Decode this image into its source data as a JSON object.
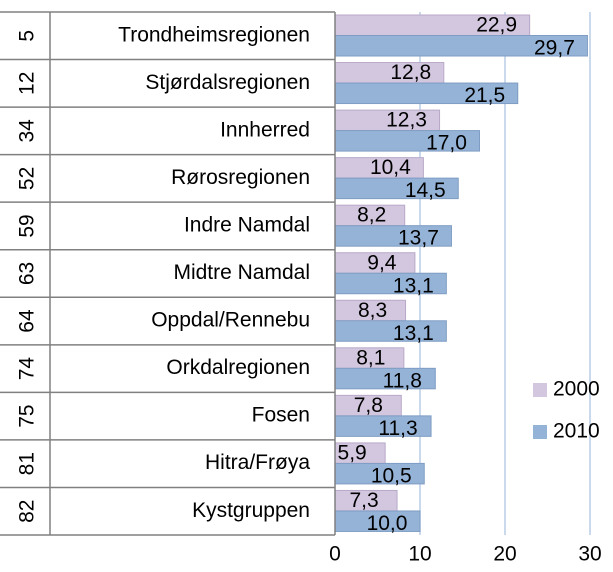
{
  "chart_data": {
    "type": "bar",
    "orientation": "horizontal",
    "ranks": [
      5,
      12,
      34,
      52,
      59,
      63,
      64,
      74,
      75,
      81,
      82
    ],
    "categories": [
      "Trondheimsregionen",
      "Stjørdalsregionen",
      "Innherred",
      "Rørosregionen",
      "Indre Namdal",
      "Midtre Namdal",
      "Oppdal/Rennebu",
      "Orkdalregionen",
      "Fosen",
      "Hitra/Frøya",
      "Kystgruppen"
    ],
    "series": [
      {
        "name": "2000",
        "color": "#d3c7df",
        "values": [
          22.9,
          12.8,
          12.3,
          10.4,
          8.2,
          9.4,
          8.3,
          8.1,
          7.8,
          5.9,
          7.3
        ],
        "value_labels": [
          "22,9",
          "12,8",
          "12,3",
          "10,4",
          "8,2",
          "9,4",
          "8,3",
          "8,1",
          "7,8",
          "5,9",
          "7,3"
        ]
      },
      {
        "name": "2010",
        "color": "#95b3d7",
        "values": [
          29.7,
          21.5,
          17.0,
          14.5,
          13.7,
          13.1,
          13.1,
          11.8,
          11.3,
          10.5,
          10.0
        ],
        "value_labels": [
          "29,7",
          "21,5",
          "17,0",
          "14,5",
          "13,7",
          "13,1",
          "13,1",
          "11,8",
          "11,3",
          "10,5",
          "10,0"
        ]
      }
    ],
    "xlim": [
      0,
      30
    ],
    "xticks": [
      0,
      10,
      20,
      30
    ],
    "grid": true,
    "legend": "right"
  }
}
